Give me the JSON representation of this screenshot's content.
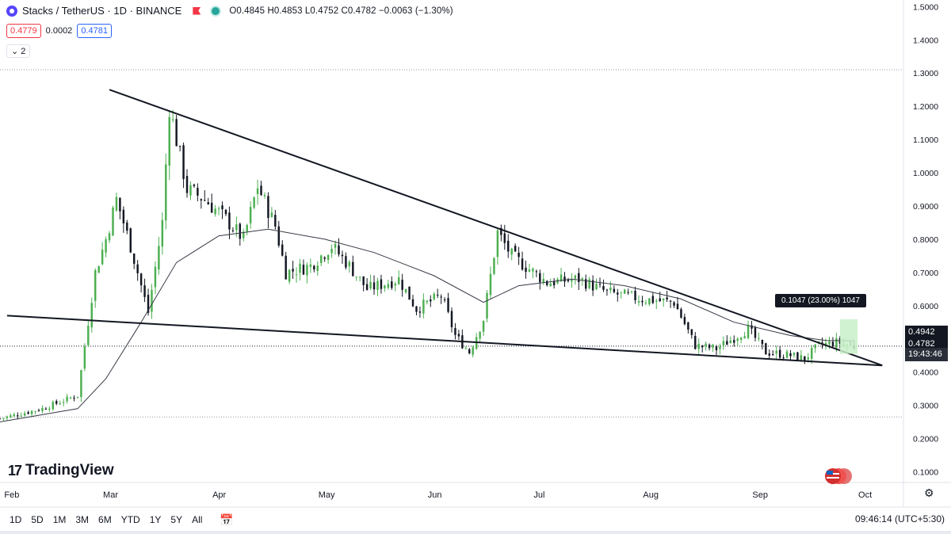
{
  "header": {
    "symbol_title": "Stacks / TetherUS · 1D · BINANCE",
    "ohlc": "O0.4845 H0.4853 L0.4752 C0.4782 −0.0063 (−1.30%)",
    "sell_price": "0.4779",
    "spread": "0.0002",
    "buy_price": "0.4781",
    "indicators_toggle": "⌄ 2"
  },
  "price_tags": {
    "ma_value": "0.4942",
    "last_price": "0.4782",
    "countdown": "19:43:46"
  },
  "measure_label": "0.1047 (23.00%) 1047",
  "brand": "TradingView",
  "bottom_bar": {
    "ranges": [
      "1D",
      "5D",
      "1M",
      "3M",
      "6M",
      "YTD",
      "1Y",
      "5Y",
      "All"
    ],
    "clock": "09:46:14 (UTC+5:30)"
  },
  "colors": {
    "up": "#089981",
    "up_light": "#4caf50",
    "down": "#131722",
    "trendline": "#131722",
    "ma": "#363a45",
    "measure_fill": "#c8f0c8"
  },
  "icons": [
    "stacks-logo-icon",
    "flag-icon",
    "eye-icon",
    "calendar-icon",
    "settings-icon",
    "us-flag-icon"
  ],
  "chart_data": {
    "type": "candlestick",
    "title": "Stacks / TetherUS · 1D · BINANCE",
    "x_tick_labels": [
      "Feb",
      "Mar",
      "Apr",
      "May",
      "Jun",
      "Jul",
      "Aug",
      "Sep",
      "Oct"
    ],
    "y_tick_labels": [
      "0.1000",
      "0.2000",
      "0.3000",
      "0.4000",
      "0.5000",
      "0.6000",
      "0.7000",
      "0.8000",
      "0.9000",
      "1.0000",
      "1.1000",
      "1.2000",
      "1.3000",
      "1.4000",
      "1.5000"
    ],
    "ylim": [
      0.07,
      1.52
    ],
    "xlim": [
      "Jan 29",
      "Oct 12"
    ],
    "grid": false,
    "series": [
      {
        "name": "Close (approx.)",
        "points": [
          [
            "Jan 29",
            0.26
          ],
          [
            "Feb 10",
            0.29
          ],
          [
            "Feb 20",
            0.33
          ],
          [
            "Feb 25",
            0.7
          ],
          [
            "Feb 28",
            0.8
          ],
          [
            "Mar 3",
            0.92
          ],
          [
            "Mar 7",
            0.78
          ],
          [
            "Mar 12",
            0.58
          ],
          [
            "Mar 16",
            0.85
          ],
          [
            "Mar 18",
            1.2
          ],
          [
            "Mar 20",
            1.1
          ],
          [
            "Mar 23",
            0.95
          ],
          [
            "Mar 28",
            0.92
          ],
          [
            "Apr 3",
            0.86
          ],
          [
            "Apr 8",
            0.8
          ],
          [
            "Apr 12",
            0.96
          ],
          [
            "Apr 17",
            0.84
          ],
          [
            "Apr 20",
            0.7
          ],
          [
            "Apr 27",
            0.72
          ],
          [
            "May 3",
            0.78
          ],
          [
            "May 8",
            0.72
          ],
          [
            "May 13",
            0.65
          ],
          [
            "May 22",
            0.68
          ],
          [
            "May 27",
            0.59
          ],
          [
            "Jun 3",
            0.63
          ],
          [
            "Jun 7",
            0.51
          ],
          [
            "Jun 11",
            0.46
          ],
          [
            "Jun 15",
            0.56
          ],
          [
            "Jun 19",
            0.82
          ],
          [
            "Jun 23",
            0.75
          ],
          [
            "Jun 28",
            0.71
          ],
          [
            "Jul 3",
            0.67
          ],
          [
            "Jul 12",
            0.68
          ],
          [
            "Jul 20",
            0.64
          ],
          [
            "Jul 30",
            0.62
          ],
          [
            "Aug 8",
            0.61
          ],
          [
            "Aug 14",
            0.48
          ],
          [
            "Aug 20",
            0.47
          ],
          [
            "Aug 29",
            0.53
          ],
          [
            "Sep 3",
            0.46
          ],
          [
            "Sep 10",
            0.45
          ],
          [
            "Sep 14",
            0.44
          ],
          [
            "Sep 18",
            0.48
          ],
          [
            "Sep 23",
            0.49
          ],
          [
            "Sep 28",
            0.4782
          ]
        ]
      },
      {
        "name": "Moving average (approx.)",
        "points": [
          [
            "Jan 29",
            0.25
          ],
          [
            "Feb 20",
            0.29
          ],
          [
            "Feb 28",
            0.38
          ],
          [
            "Mar 10",
            0.55
          ],
          [
            "Mar 20",
            0.73
          ],
          [
            "Apr 1",
            0.81
          ],
          [
            "Apr 15",
            0.83
          ],
          [
            "May 1",
            0.8
          ],
          [
            "May 15",
            0.76
          ],
          [
            "Jun 1",
            0.69
          ],
          [
            "Jun 15",
            0.61
          ],
          [
            "Jun 25",
            0.66
          ],
          [
            "Jul 10",
            0.68
          ],
          [
            "Jul 25",
            0.66
          ],
          [
            "Aug 10",
            0.62
          ],
          [
            "Aug 25",
            0.55
          ],
          [
            "Sep 10",
            0.51
          ],
          [
            "Sep 20",
            0.495
          ],
          [
            "Sep 28",
            0.4942
          ]
        ]
      }
    ],
    "trendlines": [
      {
        "name": "Upper resistance",
        "from": [
          "Mar 1",
          1.25
        ],
        "to": [
          "Oct 6",
          0.42
        ]
      },
      {
        "name": "Lower support",
        "from": [
          "Jan 31",
          0.57
        ],
        "to": [
          "Oct 6",
          0.42
        ]
      }
    ],
    "horizontal_levels": [
      1.31,
      0.265
    ],
    "measurement": {
      "from": 0.455,
      "to": 0.559,
      "change": "0.1047 (23.00%)",
      "bars": "1047"
    },
    "last_price": 0.4782,
    "ma_last": 0.4942
  }
}
